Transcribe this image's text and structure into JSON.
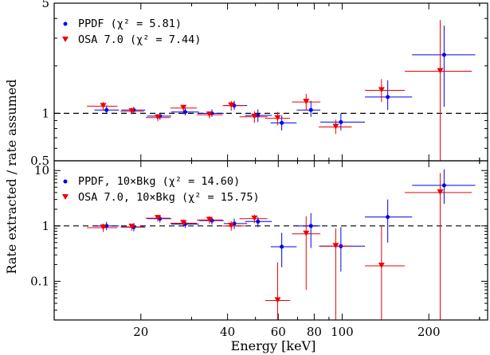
{
  "figure": {
    "xlabel": "Energy [keV]",
    "ylabel": "Rate extracted / rate assumed"
  },
  "colors": {
    "ppdf": "#0000ee",
    "osa": "#ee0000",
    "axis": "#000000"
  },
  "chart_data": [
    {
      "type": "scatter",
      "panel": "top",
      "xscale": "log",
      "yscale": "log",
      "xlim": [
        10,
        320
      ],
      "ylim": [
        0.5,
        5
      ],
      "ytick_labels": [
        "0.5",
        "1",
        "5"
      ],
      "reference_line": 1,
      "legend_position": "top-left",
      "legend": [
        "PPDF (χ² = 5.81)",
        "OSA 7.0 (χ² = 7.44)"
      ],
      "series": [
        {
          "name": "PPDF (χ² = 5.81)",
          "marker": "circle",
          "points": [
            {
              "x": 15.2,
              "y": 1.05,
              "xlo": 13.8,
              "xhi": 16.8,
              "ylo": 0.99,
              "yhi": 1.12
            },
            {
              "x": 18.9,
              "y": 1.05,
              "xlo": 17.1,
              "xhi": 20.7,
              "ylo": 1.0,
              "yhi": 1.1
            },
            {
              "x": 23.3,
              "y": 0.96,
              "xlo": 21.0,
              "xhi": 25.5,
              "ylo": 0.91,
              "yhi": 1.01
            },
            {
              "x": 28.5,
              "y": 1.02,
              "xlo": 25.5,
              "xhi": 31.8,
              "ylo": 0.97,
              "yhi": 1.08
            },
            {
              "x": 35.3,
              "y": 1.0,
              "xlo": 31.8,
              "xhi": 38.8,
              "ylo": 0.95,
              "yhi": 1.06
            },
            {
              "x": 42.2,
              "y": 1.12,
              "xlo": 38.8,
              "xhi": 46.8,
              "ylo": 1.05,
              "yhi": 1.2
            },
            {
              "x": 51.0,
              "y": 0.97,
              "xlo": 46.0,
              "xhi": 57.0,
              "ylo": 0.88,
              "yhi": 1.06
            },
            {
              "x": 61.7,
              "y": 0.87,
              "xlo": 56.5,
              "xhi": 69.5,
              "ylo": 0.78,
              "yhi": 0.97
            },
            {
              "x": 77.9,
              "y": 1.05,
              "xlo": 69.5,
              "xhi": 84.0,
              "ylo": 0.95,
              "yhi": 1.2
            },
            {
              "x": 99.0,
              "y": 0.88,
              "xlo": 84.0,
              "xhi": 120.0,
              "ylo": 0.78,
              "yhi": 1.0
            },
            {
              "x": 144.0,
              "y": 1.27,
              "xlo": 120.0,
              "xhi": 175.0,
              "ylo": 1.05,
              "yhi": 1.62
            },
            {
              "x": 226.0,
              "y": 2.35,
              "xlo": 175.0,
              "xhi": 290.0,
              "ylo": 1.1,
              "yhi": 3.6
            }
          ]
        },
        {
          "name": "OSA 7.0 (χ² = 7.44)",
          "marker": "triangle-down",
          "points": [
            {
              "x": 14.8,
              "y": 1.11,
              "xlo": 13.0,
              "xhi": 16.6,
              "ylo": 1.04,
              "yhi": 1.18
            },
            {
              "x": 18.6,
              "y": 1.03,
              "xlo": 17.0,
              "xhi": 20.5,
              "ylo": 0.99,
              "yhi": 1.08
            },
            {
              "x": 22.9,
              "y": 0.94,
              "xlo": 20.8,
              "xhi": 25.3,
              "ylo": 0.89,
              "yhi": 0.99
            },
            {
              "x": 28.1,
              "y": 1.08,
              "xlo": 25.3,
              "xhi": 31.3,
              "ylo": 1.03,
              "yhi": 1.13
            },
            {
              "x": 34.6,
              "y": 0.98,
              "xlo": 31.3,
              "xhi": 38.5,
              "ylo": 0.93,
              "yhi": 1.03
            },
            {
              "x": 41.2,
              "y": 1.12,
              "xlo": 38.5,
              "xhi": 46.0,
              "ylo": 1.04,
              "yhi": 1.2
            },
            {
              "x": 49.6,
              "y": 0.95,
              "xlo": 44.0,
              "xhi": 55.0,
              "ylo": 0.87,
              "yhi": 1.03
            },
            {
              "x": 59.7,
              "y": 0.93,
              "xlo": 54.0,
              "xhi": 66.0,
              "ylo": 0.84,
              "yhi": 1.02
            },
            {
              "x": 75.0,
              "y": 1.18,
              "xlo": 67.0,
              "xhi": 84.0,
              "ylo": 1.04,
              "yhi": 1.33
            },
            {
              "x": 95.0,
              "y": 0.82,
              "xlo": 83.0,
              "xhi": 108.0,
              "ylo": 0.74,
              "yhi": 0.91
            },
            {
              "x": 137.0,
              "y": 1.4,
              "xlo": 120.0,
              "xhi": 165.0,
              "ylo": 1.18,
              "yhi": 1.65
            },
            {
              "x": 219.0,
              "y": 1.85,
              "xlo": 165.0,
              "xhi": 282.0,
              "ylo": 0.5,
              "yhi": 3.9
            }
          ]
        }
      ]
    },
    {
      "type": "scatter",
      "panel": "bottom",
      "xscale": "log",
      "yscale": "log",
      "xlim": [
        10,
        320
      ],
      "ylim": [
        0.02,
        15
      ],
      "ytick_labels": [
        "0.1",
        "1",
        "10"
      ],
      "xtick_labels": [
        "20",
        "40",
        "60",
        "80",
        "100",
        "200"
      ],
      "reference_line": 1,
      "legend_position": "top-left",
      "legend": [
        "PPDF, 10×Bkg (χ² = 14.60)",
        "OSA 7.0, 10×Bkg (χ² = 15.75)"
      ],
      "series": [
        {
          "name": "PPDF, 10×Bkg (χ² = 14.60)",
          "marker": "circle",
          "points": [
            {
              "x": 15.2,
              "y": 1.0,
              "xlo": 13.8,
              "xhi": 16.8,
              "ylo": 0.84,
              "yhi": 1.18
            },
            {
              "x": 18.9,
              "y": 0.95,
              "xlo": 17.1,
              "xhi": 20.7,
              "ylo": 0.8,
              "yhi": 1.12
            },
            {
              "x": 23.3,
              "y": 1.35,
              "xlo": 21.0,
              "xhi": 25.5,
              "ylo": 1.15,
              "yhi": 1.55
            },
            {
              "x": 28.5,
              "y": 1.08,
              "xlo": 25.5,
              "xhi": 31.8,
              "ylo": 0.92,
              "yhi": 1.28
            },
            {
              "x": 35.3,
              "y": 1.25,
              "xlo": 31.8,
              "xhi": 38.8,
              "ylo": 1.06,
              "yhi": 1.45
            },
            {
              "x": 42.2,
              "y": 1.1,
              "xlo": 38.8,
              "xhi": 46.8,
              "ylo": 0.88,
              "yhi": 1.35
            },
            {
              "x": 51.0,
              "y": 1.2,
              "xlo": 46.0,
              "xhi": 57.0,
              "ylo": 0.95,
              "yhi": 1.45
            },
            {
              "x": 61.7,
              "y": 0.42,
              "xlo": 56.5,
              "xhi": 69.5,
              "ylo": 0.18,
              "yhi": 0.75
            },
            {
              "x": 77.9,
              "y": 1.0,
              "xlo": 69.5,
              "xhi": 84.0,
              "ylo": 0.4,
              "yhi": 1.7
            },
            {
              "x": 99.0,
              "y": 0.43,
              "xlo": 84.0,
              "xhi": 120.0,
              "ylo": 0.15,
              "yhi": 0.95
            },
            {
              "x": 144.0,
              "y": 1.45,
              "xlo": 120.0,
              "xhi": 175.0,
              "ylo": 0.5,
              "yhi": 3.0
            },
            {
              "x": 226.0,
              "y": 5.4,
              "xlo": 175.0,
              "xhi": 290.0,
              "ylo": 2.5,
              "yhi": 10.5
            }
          ]
        },
        {
          "name": "OSA 7.0, 10×Bkg (χ² = 15.75)",
          "marker": "triangle-down",
          "points": [
            {
              "x": 14.8,
              "y": 0.93,
              "xlo": 13.0,
              "xhi": 16.6,
              "ylo": 0.78,
              "yhi": 1.1
            },
            {
              "x": 18.6,
              "y": 0.96,
              "xlo": 17.0,
              "xhi": 20.5,
              "ylo": 0.82,
              "yhi": 1.1
            },
            {
              "x": 22.9,
              "y": 1.38,
              "xlo": 20.8,
              "xhi": 25.3,
              "ylo": 1.2,
              "yhi": 1.58
            },
            {
              "x": 28.1,
              "y": 1.12,
              "xlo": 25.3,
              "xhi": 31.3,
              "ylo": 0.96,
              "yhi": 1.3
            },
            {
              "x": 34.6,
              "y": 1.28,
              "xlo": 31.3,
              "xhi": 38.5,
              "ylo": 1.1,
              "yhi": 1.48
            },
            {
              "x": 41.2,
              "y": 1.0,
              "xlo": 38.5,
              "xhi": 46.0,
              "ylo": 0.82,
              "yhi": 1.22
            },
            {
              "x": 49.6,
              "y": 1.35,
              "xlo": 44.0,
              "xhi": 55.0,
              "ylo": 1.12,
              "yhi": 1.6
            },
            {
              "x": 59.7,
              "y": 0.045,
              "xlo": 54.0,
              "xhi": 66.0,
              "ylo": 0.02,
              "yhi": 0.22
            },
            {
              "x": 75.0,
              "y": 0.72,
              "xlo": 67.0,
              "xhi": 84.0,
              "ylo": 0.07,
              "yhi": 1.5
            },
            {
              "x": 95.0,
              "y": 0.43,
              "xlo": 83.0,
              "xhi": 108.0,
              "ylo": 0.02,
              "yhi": 0.9
            },
            {
              "x": 137.0,
              "y": 0.19,
              "xlo": 120.0,
              "xhi": 165.0,
              "ylo": 0.02,
              "yhi": 1.0
            },
            {
              "x": 219.0,
              "y": 4.0,
              "xlo": 165.0,
              "xhi": 282.0,
              "ylo": 0.02,
              "yhi": 9.0
            }
          ]
        }
      ]
    }
  ]
}
